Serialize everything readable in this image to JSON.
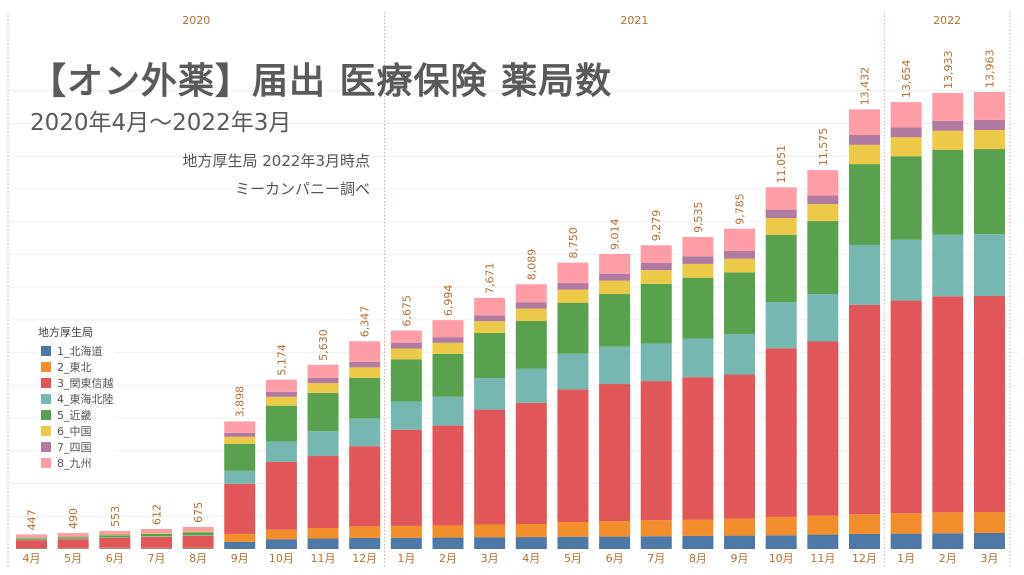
{
  "title": "【オン外薬】届出 医療保険 薬局数",
  "subtitle": "2020年4月～2022年3月",
  "source_line1": "地方厚生局 2022年3月時点",
  "source_line2": "ミーカンパニー調べ",
  "legend": {
    "title": "地方厚生局",
    "items": [
      {
        "label": "1_北海道",
        "color": "#4e79a7"
      },
      {
        "label": "2_東北",
        "color": "#f28e2b"
      },
      {
        "label": "3_関東信越",
        "color": "#e15759"
      },
      {
        "label": "4_東海北陸",
        "color": "#76b7b2"
      },
      {
        "label": "5_近畿",
        "color": "#59a14f"
      },
      {
        "label": "6_中国",
        "color": "#edc948"
      },
      {
        "label": "7_四国",
        "color": "#b07aa1"
      },
      {
        "label": "8_九州",
        "color": "#ff9da7"
      }
    ]
  },
  "chart_data": {
    "type": "bar",
    "stacked": true,
    "title": "【オン外薬】届出 医療保険 薬局数",
    "subtitle": "2020年4月～2022年3月",
    "xlabel": "",
    "ylabel": "",
    "ylim": [
      0,
      14500
    ],
    "grid": true,
    "legend_position": "left",
    "years": [
      {
        "label": "2020",
        "start": 0,
        "count": 9
      },
      {
        "label": "2021",
        "start": 9,
        "count": 12
      },
      {
        "label": "2022",
        "start": 21,
        "count": 3
      }
    ],
    "categories": [
      "4月",
      "5月",
      "6月",
      "7月",
      "8月",
      "9月",
      "10月",
      "11月",
      "12月",
      "1月",
      "2月",
      "3月",
      "4月",
      "5月",
      "6月",
      "7月",
      "8月",
      "9月",
      "10月",
      "11月",
      "12月",
      "1月",
      "2月",
      "3月"
    ],
    "totals": [
      447,
      490,
      553,
      612,
      675,
      3898,
      5174,
      5630,
      6347,
      6675,
      6994,
      7671,
      8089,
      8750,
      9014,
      9279,
      9535,
      9785,
      11051,
      11575,
      13432,
      13654,
      13933,
      13963
    ],
    "total_labels": [
      "447",
      "490",
      "553",
      "612",
      "675",
      "3,898",
      "5,174",
      "5,630",
      "6,347",
      "6,675",
      "6,994",
      "7,671",
      "8,089",
      "8,750",
      "9,014",
      "9,279",
      "9,535",
      "9,785",
      "11,051",
      "11,575",
      "13,432",
      "13,654",
      "13,933",
      "13,963"
    ],
    "series": [
      {
        "name": "1_北海道",
        "color": "#4e79a7",
        "values": [
          18,
          20,
          22,
          24,
          26,
          215,
          300,
          320,
          340,
          345,
          350,
          360,
          365,
          375,
          380,
          390,
          400,
          410,
          420,
          440,
          460,
          470,
          480,
          490
        ]
      },
      {
        "name": "2_東北",
        "color": "#f28e2b",
        "values": [
          12,
          14,
          16,
          18,
          20,
          245,
          290,
          320,
          350,
          360,
          370,
          390,
          400,
          450,
          470,
          490,
          500,
          520,
          560,
          580,
          600,
          620,
          640,
          640
        ]
      },
      {
        "name": "3_関東信越",
        "color": "#e15759",
        "values": [
          240,
          265,
          300,
          330,
          360,
          1530,
          2070,
          2200,
          2450,
          2940,
          3050,
          3510,
          3700,
          4050,
          4190,
          4250,
          4350,
          4400,
          5150,
          5320,
          6400,
          6500,
          6600,
          6600
        ]
      },
      {
        "name": "4_東海北陸",
        "color": "#76b7b2",
        "values": [
          15,
          16,
          18,
          20,
          22,
          400,
          620,
          760,
          850,
          860,
          880,
          960,
          1040,
          1090,
          1140,
          1150,
          1180,
          1240,
          1410,
          1450,
          1830,
          1860,
          1880,
          1890
        ]
      },
      {
        "name": "5_近畿",
        "color": "#59a14f",
        "values": [
          40,
          45,
          60,
          70,
          80,
          825,
          1100,
          1170,
          1240,
          1290,
          1310,
          1380,
          1460,
          1560,
          1610,
          1820,
          1860,
          1880,
          2060,
          2230,
          2470,
          2550,
          2600,
          2600
        ]
      },
      {
        "name": "6_中国",
        "color": "#edc948",
        "values": [
          22,
          24,
          28,
          32,
          36,
          215,
          270,
          300,
          320,
          330,
          340,
          360,
          380,
          400,
          410,
          420,
          420,
          420,
          510,
          520,
          590,
          580,
          580,
          580
        ]
      },
      {
        "name": "7_四国",
        "color": "#b07aa1",
        "values": [
          10,
          11,
          12,
          14,
          16,
          120,
          150,
          160,
          170,
          170,
          170,
          180,
          190,
          200,
          210,
          220,
          230,
          235,
          260,
          265,
          300,
          300,
          300,
          310
        ]
      },
      {
        "name": "8_九州",
        "color": "#ff9da7",
        "values": [
          90,
          95,
          97,
          104,
          115,
          348,
          374,
          400,
          627,
          380,
          524,
          531,
          554,
          625,
          604,
          539,
          595,
          680,
          681,
          770,
          782,
          774,
          853,
          853
        ]
      }
    ]
  }
}
